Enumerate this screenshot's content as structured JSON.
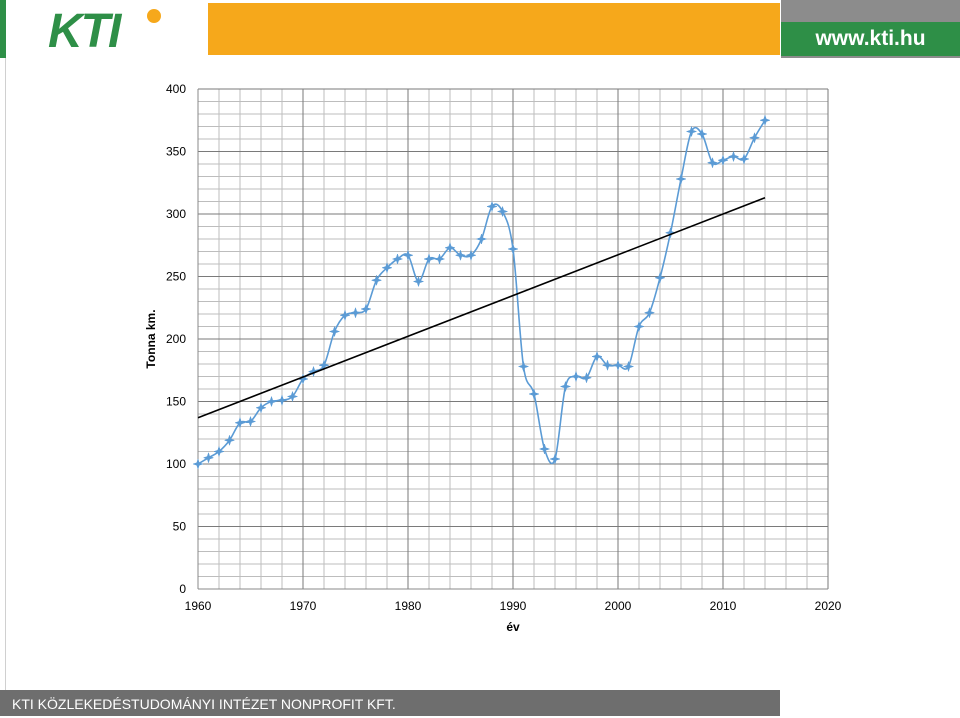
{
  "header": {
    "logo_text": "KTI",
    "url": "www.kti.hu",
    "colors": {
      "green": "#2e8f47",
      "orange": "#f6a81b",
      "grey": "#8c8c8c"
    }
  },
  "footer": {
    "text": "KTI KÖZLEKEDÉSTUDOMÁNYI INTÉZET NONPROFIT KFT."
  },
  "chart_data": {
    "type": "line",
    "xlabel": "év",
    "ylabel": "Tonna km.",
    "xlim": [
      1960,
      2020
    ],
    "ylim": [
      0,
      400
    ],
    "x_ticks": [
      1960,
      1970,
      1980,
      1990,
      2000,
      2010,
      2020
    ],
    "y_ticks": [
      0,
      50,
      100,
      150,
      200,
      250,
      300,
      350,
      400
    ],
    "grid": true,
    "legend": "none",
    "series": [
      {
        "kind": "data",
        "color": "#5b9bd5",
        "marker": "star",
        "x": [
          1960,
          1961,
          1962,
          1963,
          1964,
          1965,
          1966,
          1967,
          1968,
          1969,
          1970,
          1971,
          1972,
          1973,
          1974,
          1975,
          1976,
          1977,
          1978,
          1979,
          1980,
          1981,
          1982,
          1983,
          1984,
          1985,
          1986,
          1987,
          1988,
          1989,
          1990,
          1991,
          1992,
          1993,
          1994,
          1995,
          1996,
          1997,
          1998,
          1999,
          2000,
          2001,
          2002,
          2003,
          2004,
          2005,
          2006,
          2007,
          2008,
          2009,
          2010,
          2011,
          2012,
          2013,
          2014
        ],
        "y": [
          100,
          105,
          110,
          119,
          133,
          134,
          145,
          150,
          151,
          154,
          168,
          174,
          179,
          206,
          219,
          221,
          224,
          247,
          257,
          264,
          267,
          246,
          264,
          264,
          273,
          267,
          267,
          280,
          306,
          302,
          272,
          178,
          156,
          112,
          104,
          162,
          170,
          169,
          186,
          179,
          179,
          178,
          210,
          221,
          249,
          285,
          328,
          366,
          364,
          341,
          343,
          346,
          344,
          361,
          375
        ]
      },
      {
        "kind": "trend",
        "color": "#000000",
        "x": [
          1960,
          2014
        ],
        "y": [
          137,
          313
        ]
      }
    ]
  }
}
